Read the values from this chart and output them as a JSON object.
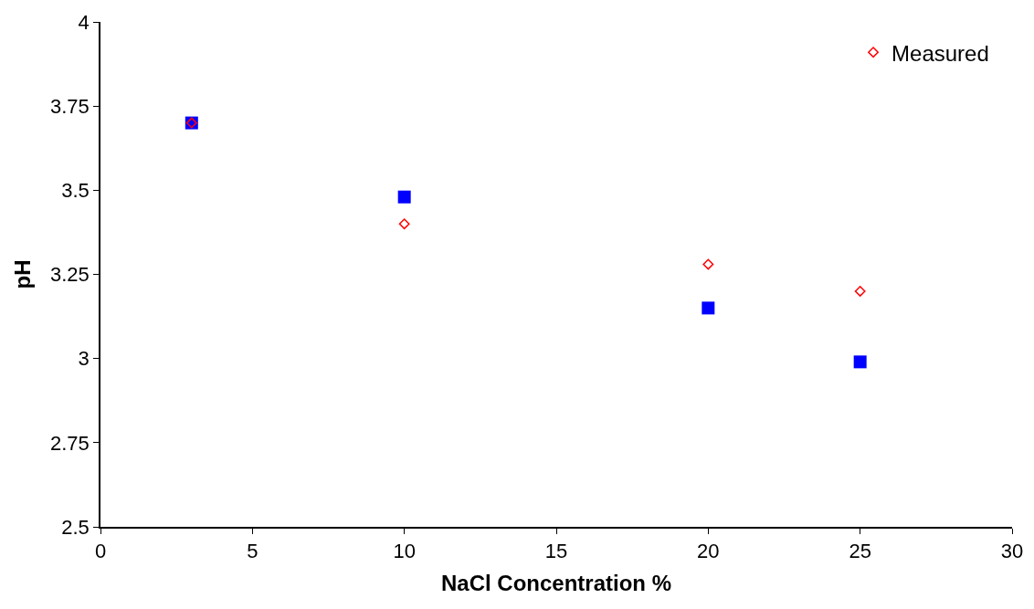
{
  "chart_data": {
    "type": "scatter",
    "xlabel": "NaCl Concentration %",
    "ylabel": "pH",
    "xlim": [
      0,
      30
    ],
    "xticks": [
      0,
      5,
      10,
      15,
      20,
      25,
      30
    ],
    "ylim": [
      2.5,
      4
    ],
    "yticks": [
      2.5,
      2.75,
      3,
      3.25,
      3.5,
      3.75,
      4
    ],
    "grid": false,
    "legend": "top right",
    "series": [
      {
        "color": "#0000ff",
        "marker": "square",
        "x": [
          3,
          10,
          20,
          25
        ],
        "values": [
          3.7,
          3.48,
          3.15,
          2.99
        ]
      },
      {
        "name": "Measured",
        "color": "#ff0000",
        "marker": "diamond",
        "x": [
          3,
          10,
          20,
          25
        ],
        "values": [
          3.7,
          3.4,
          3.28,
          3.2
        ]
      }
    ]
  }
}
